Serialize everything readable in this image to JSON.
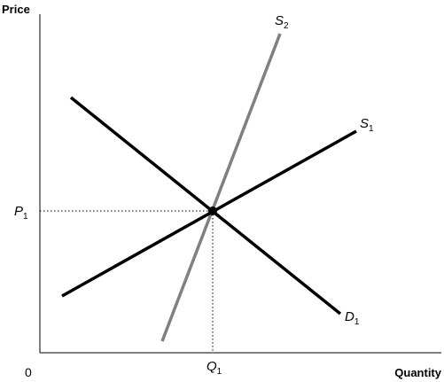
{
  "axes": {
    "y_title": "Price",
    "x_title": "Quantity",
    "origin": "0"
  },
  "ticks": {
    "price": {
      "main": "P",
      "sub": "1"
    },
    "quantity": {
      "main": "Q",
      "sub": "1"
    }
  },
  "curves": {
    "s2": {
      "main": "S",
      "sub": "2",
      "color": "#808080"
    },
    "s1": {
      "main": "S",
      "sub": "1",
      "color": "#000000"
    },
    "d1": {
      "main": "D",
      "sub": "1",
      "color": "#000000"
    }
  },
  "colors": {
    "axis": "#000000",
    "guide": "#000000",
    "equilibrium": "#000000"
  }
}
